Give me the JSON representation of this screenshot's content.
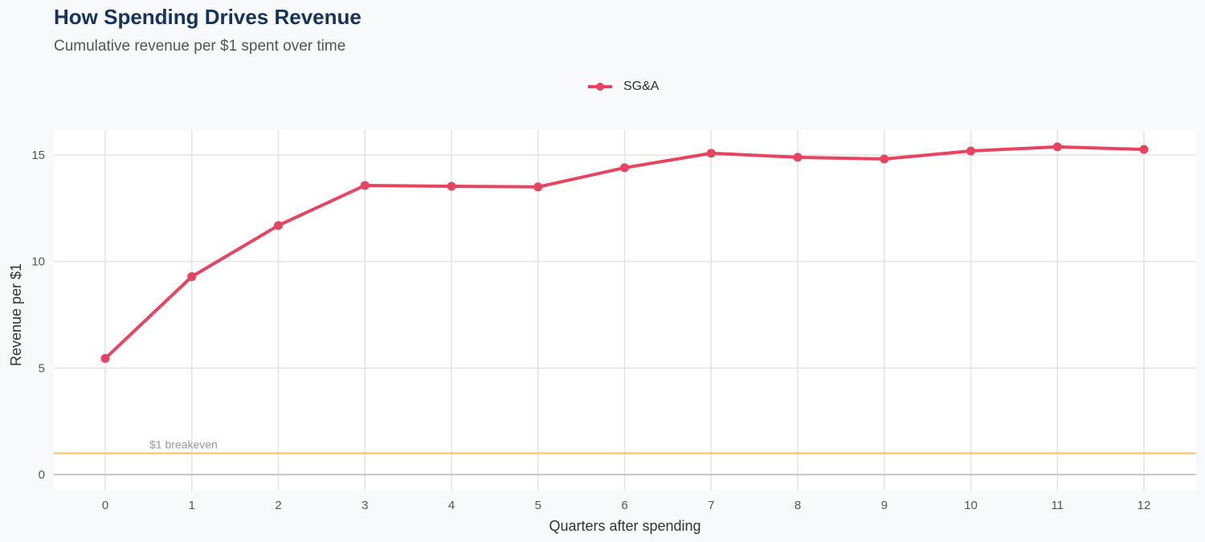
{
  "chart_data": {
    "type": "line",
    "title": "How Spending Drives Revenue",
    "subtitle": "Cumulative revenue per $1 spent over time",
    "xlabel": "Quarters after spending",
    "ylabel": "Revenue per $1",
    "x": [
      0,
      1,
      2,
      3,
      4,
      5,
      6,
      7,
      8,
      9,
      10,
      11,
      12
    ],
    "series": [
      {
        "name": "SG&A",
        "color": "#e8435f",
        "values": [
          5.45,
          9.29,
          11.69,
          13.57,
          13.53,
          13.5,
          14.4,
          15.08,
          14.89,
          14.81,
          15.19,
          15.38,
          15.26
        ]
      }
    ],
    "xticks": [
      "0",
      "1",
      "2",
      "3",
      "4",
      "5",
      "6",
      "7",
      "8",
      "9",
      "10",
      "11",
      "12"
    ],
    "yticks": [
      "0",
      "5",
      "10",
      "15"
    ],
    "xlim": [
      -0.6,
      12.6
    ],
    "ylim": [
      -0.75,
      16.2
    ],
    "reference_line": {
      "y": 1,
      "label": "$1 breakeven",
      "color": "#f7cd6a"
    },
    "grid": true,
    "legend_position": "top"
  }
}
